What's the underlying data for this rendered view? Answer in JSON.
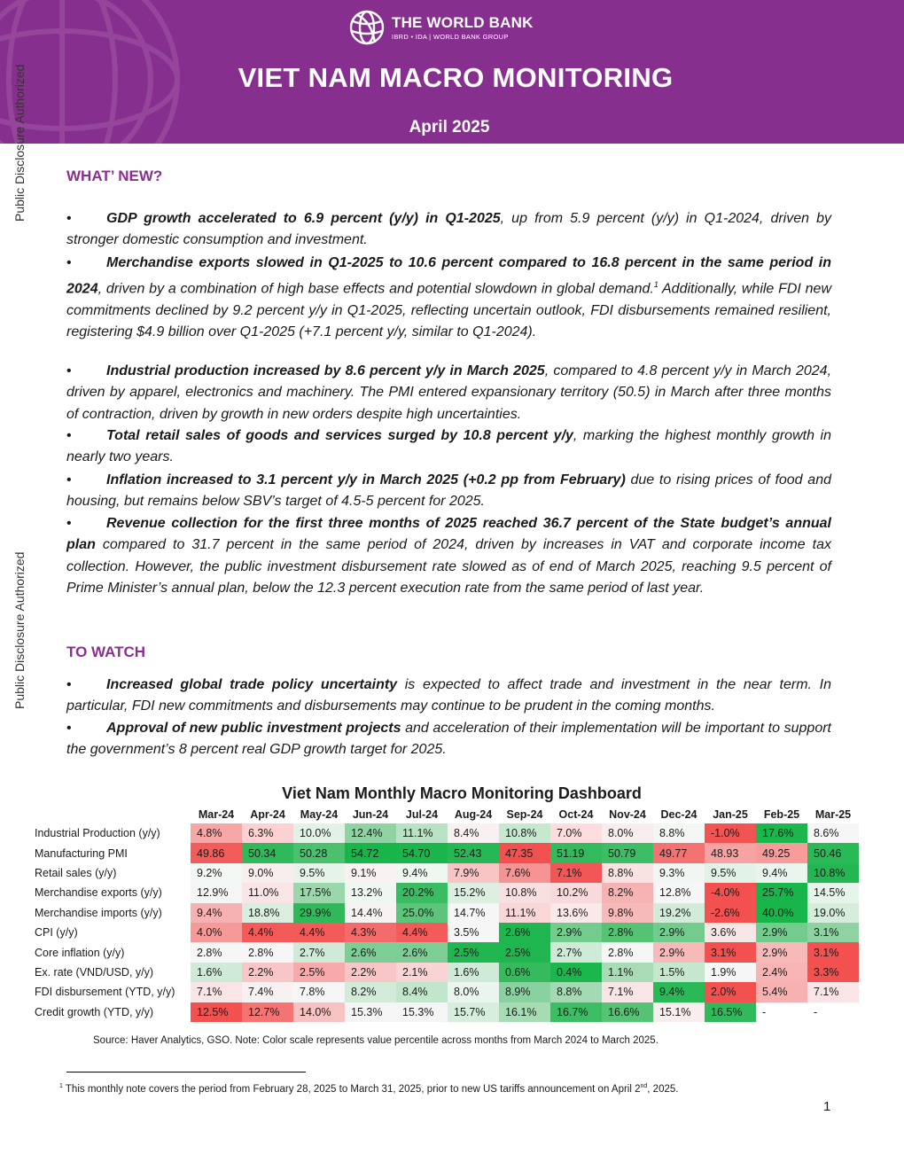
{
  "side_label": "Public Disclosure Authorized",
  "header": {
    "org": "THE WORLD BANK",
    "org_sub": "IBRD • IDA | WORLD BANK GROUP",
    "title": "VIET NAM MACRO MONITORING",
    "date": "April 2025",
    "banner_color": "#872f8e"
  },
  "whats_new": {
    "heading": "WHAT’ NEW?",
    "bullets": [
      {
        "bold": "GDP growth accelerated to 6.9 percent (y/y) in Q1-2025",
        "text": ", up from 5.9 percent (y/y) in Q1-2024, driven by stronger domestic consumption and investment.",
        "sup": "",
        "text2": ""
      },
      {
        "bold": "Merchandise exports slowed in Q1-2025 to 10.6 percent compared to 16.8 percent in the same period in 2024",
        "text": ", driven by a combination of high base effects and potential slowdown in global demand.",
        "sup": "1",
        "text2": " Additionally, while FDI new commitments declined by 9.2 percent y/y in Q1-2025, reflecting uncertain outlook, FDI disbursements remained resilient, registering $4.9 billion over Q1-2025 (+7.1 percent y/y, similar to Q1-2024)."
      },
      {
        "bold": "Industrial production increased by 8.6 percent y/y in March 2025",
        "text": ", compared to 4.8 percent y/y in March 2024, driven by apparel, electronics and machinery. The PMI entered expansionary territory (50.5) in March after three months of contraction, driven by growth in new orders despite high uncertainties.",
        "sup": "",
        "text2": ""
      },
      {
        "bold": "Total retail sales of goods and services surged by 10.8 percent y/y",
        "text": ", marking the highest monthly growth in nearly two years.",
        "sup": "",
        "text2": ""
      },
      {
        "bold": "Inflation increased to 3.1 percent y/y in March 2025 (+0.2 pp from February)",
        "text": " due to rising prices of food and housing, but remains below SBV’s target of 4.5-5 percent for 2025.",
        "sup": "",
        "text2": ""
      },
      {
        "bold": "Revenue collection for the first three months of 2025 reached 36.7 percent of the State budget’s annual plan",
        "text": " compared to 31.7 percent in the same period of 2024, driven by increases in VAT and corporate income tax collection. However, the public investment disbursement rate slowed as of end of March 2025, reaching 9.5 percent of Prime Minister’s annual plan, below the 12.3 percent execution rate from the same period of last year.",
        "sup": "",
        "text2": ""
      }
    ]
  },
  "to_watch": {
    "heading": "TO WATCH",
    "bullets": [
      {
        "bold": "Increased global trade policy uncertainty",
        "text": " is expected to affect trade and investment in the near term. In particular, FDI new commitments and disbursements may continue to be prudent in the coming months.",
        "sup": "",
        "text2": ""
      },
      {
        "bold": "Approval of new public investment projects",
        "text": " and acceleration of their implementation will be important to support the government’s 8 percent real GDP growth target for 2025.",
        "sup": "",
        "text2": ""
      }
    ]
  },
  "dashboard": {
    "title": "Viet Nam Monthly Macro Monitoring Dashboard",
    "months": [
      "Mar-24",
      "Apr-24",
      "May-24",
      "Jun-24",
      "Jul-24",
      "Aug-24",
      "Sep-24",
      "Oct-24",
      "Nov-24",
      "Dec-24",
      "Jan-25",
      "Feb-25",
      "Mar-25"
    ],
    "rows": [
      {
        "label": "Industrial Production (y/y)",
        "values": [
          "4.8%",
          "6.3%",
          "10.0%",
          "12.4%",
          "11.1%",
          "8.4%",
          "10.8%",
          "7.0%",
          "8.0%",
          "8.8%",
          "-1.0%",
          "17.6%",
          "8.6%"
        ],
        "colors": [
          "#f7a6a6",
          "#fbd1d1",
          "#e3f2e7",
          "#8fd3a2",
          "#b8e2c3",
          "#f9f0f0",
          "#c6e8cf",
          "#fcdcdc",
          "#f8eded",
          "#f3f6f3",
          "#f25454",
          "#1bb74c",
          "#f6f6f6"
        ]
      },
      {
        "label": "Manufacturing PMI",
        "values": [
          "49.86",
          "50.34",
          "50.28",
          "54.72",
          "54.70",
          "52.43",
          "47.35",
          "51.19",
          "50.79",
          "49.77",
          "48.93",
          "49.25",
          "50.46"
        ],
        "colors": [
          "#f45b5b",
          "#2fb95a",
          "#4bc06d",
          "#17b54a",
          "#1ab64c",
          "#26b854",
          "#f35050",
          "#33ba5d",
          "#3dbd65",
          "#f57272",
          "#f7a3a3",
          "#f79b9b",
          "#2ab957"
        ]
      },
      {
        "label": "Retail sales (y/y)",
        "values": [
          "9.2%",
          "9.0%",
          "9.5%",
          "9.1%",
          "9.4%",
          "7.9%",
          "7.6%",
          "7.1%",
          "8.8%",
          "9.3%",
          "9.5%",
          "9.4%",
          "10.8%"
        ],
        "colors": [
          "#f3f7f4",
          "#f9eeee",
          "#e5f3e9",
          "#f9f2f2",
          "#eef7f0",
          "#f8c4c4",
          "#f69393",
          "#f35656",
          "#f8e2e2",
          "#f1f6f2",
          "#e3f2e7",
          "#eaf5ed",
          "#22b752"
        ]
      },
      {
        "label": "Merchandise exports (y/y)",
        "values": [
          "12.9%",
          "11.0%",
          "17.5%",
          "13.2%",
          "20.2%",
          "15.2%",
          "10.8%",
          "10.2%",
          "8.2%",
          "12.8%",
          "-4.0%",
          "25.7%",
          "14.5%"
        ],
        "colors": [
          "#f5f5f5",
          "#f9e5e5",
          "#9ad7aa",
          "#eef7f0",
          "#39bc62",
          "#dcefe1",
          "#f9e0e0",
          "#f9d9d9",
          "#f6b3b3",
          "#f6f6f6",
          "#f35050",
          "#17b54a",
          "#e7f4ea"
        ]
      },
      {
        "label": "Merchandise imports (y/y)",
        "values": [
          "9.4%",
          "18.8%",
          "29.9%",
          "14.4%",
          "25.0%",
          "14.7%",
          "11.1%",
          "13.6%",
          "9.8%",
          "19.2%",
          "-2.6%",
          "40.0%",
          "19.0%"
        ],
        "colors": [
          "#f6b2b2",
          "#d9eedf",
          "#2fb95a",
          "#f7f3f3",
          "#5cc47b",
          "#f6f6f6",
          "#f9d7d7",
          "#f9e9e9",
          "#f6baba",
          "#d2ecd9",
          "#f35050",
          "#17b54a",
          "#d6eddc"
        ]
      },
      {
        "label": "CPI (y/y)",
        "values": [
          "4.0%",
          "4.4%",
          "4.4%",
          "4.3%",
          "4.4%",
          "3.5%",
          "2.6%",
          "2.9%",
          "2.8%",
          "2.9%",
          "3.6%",
          "2.9%",
          "3.1%"
        ],
        "colors": [
          "#f69999",
          "#f35a5a",
          "#f35a5a",
          "#f46b6b",
          "#f35a5a",
          "#f6f6f6",
          "#1fb64f",
          "#73cb8d",
          "#55c274",
          "#73cb8d",
          "#f7e6e6",
          "#73cb8d",
          "#8fd3a2"
        ]
      },
      {
        "label": "Core inflation (y/y)",
        "values": [
          "2.8%",
          "2.8%",
          "2.7%",
          "2.6%",
          "2.6%",
          "2.5%",
          "2.5%",
          "2.7%",
          "2.8%",
          "2.9%",
          "3.1%",
          "2.9%",
          "3.1%"
        ],
        "colors": [
          "#f6f6f6",
          "#f6f6f6",
          "#cfebd7",
          "#7dce94",
          "#7dce94",
          "#1fb64f",
          "#1fb64f",
          "#cfebd7",
          "#f6f6f6",
          "#f8b9b9",
          "#f35050",
          "#f8b9b9",
          "#f35050"
        ]
      },
      {
        "label": "Ex. rate (VND/USD, y/y)",
        "values": [
          "1.6%",
          "2.2%",
          "2.5%",
          "2.2%",
          "2.1%",
          "1.6%",
          "0.6%",
          "0.4%",
          "1.1%",
          "1.5%",
          "1.9%",
          "2.4%",
          "3.3%"
        ],
        "colors": [
          "#cfebd7",
          "#f8c6c6",
          "#f8a9a9",
          "#f8c6c6",
          "#f9d4d4",
          "#cfebd7",
          "#35bb5e",
          "#1bb64c",
          "#a9dcb6",
          "#c4e7cd",
          "#f6f6f6",
          "#f8b4b4",
          "#f35050"
        ]
      },
      {
        "label": "FDI disbursement (YTD, y/y)",
        "values": [
          "7.1%",
          "7.4%",
          "7.8%",
          "8.2%",
          "8.4%",
          "8.0%",
          "8.9%",
          "8.8%",
          "7.1%",
          "9.4%",
          "2.0%",
          "5.4%",
          "7.1%"
        ],
        "colors": [
          "#f9e5e5",
          "#f7f1f1",
          "#f5f6f5",
          "#d2ecd9",
          "#c1e6cb",
          "#eaf5ed",
          "#8ad1a0",
          "#a4dab3",
          "#f9e5e5",
          "#2ab957",
          "#f35050",
          "#f7b1b1",
          "#f9e5e5"
        ]
      },
      {
        "label": "Credit growth (YTD, y/y)",
        "values": [
          "12.5%",
          "12.7%",
          "14.0%",
          "15.3%",
          "15.3%",
          "15.7%",
          "16.1%",
          "16.7%",
          "16.6%",
          "15.1%",
          "16.5%",
          "-",
          "-"
        ],
        "colors": [
          "#f35050",
          "#f57373",
          "#f8c2c2",
          "#f5f5f5",
          "#f5f5f5",
          "#d7eedd",
          "#a6dbb4",
          "#3cbd64",
          "#55c274",
          "#f9eeee",
          "#31ba5c",
          "#ffffff",
          "#ffffff"
        ]
      }
    ],
    "source": "Source: Haver Analytics, GSO. Note: Color scale represents value percentile across months from March 2024 to March 2025."
  },
  "footnote": {
    "marker": "1",
    "text_before": " This monthly note covers the period from February 28, 2025 to March 31, 2025, prior to new US tariffs announcement on April 2",
    "sup2": "nd",
    "text_after": ", 2025."
  },
  "page_number": "1"
}
